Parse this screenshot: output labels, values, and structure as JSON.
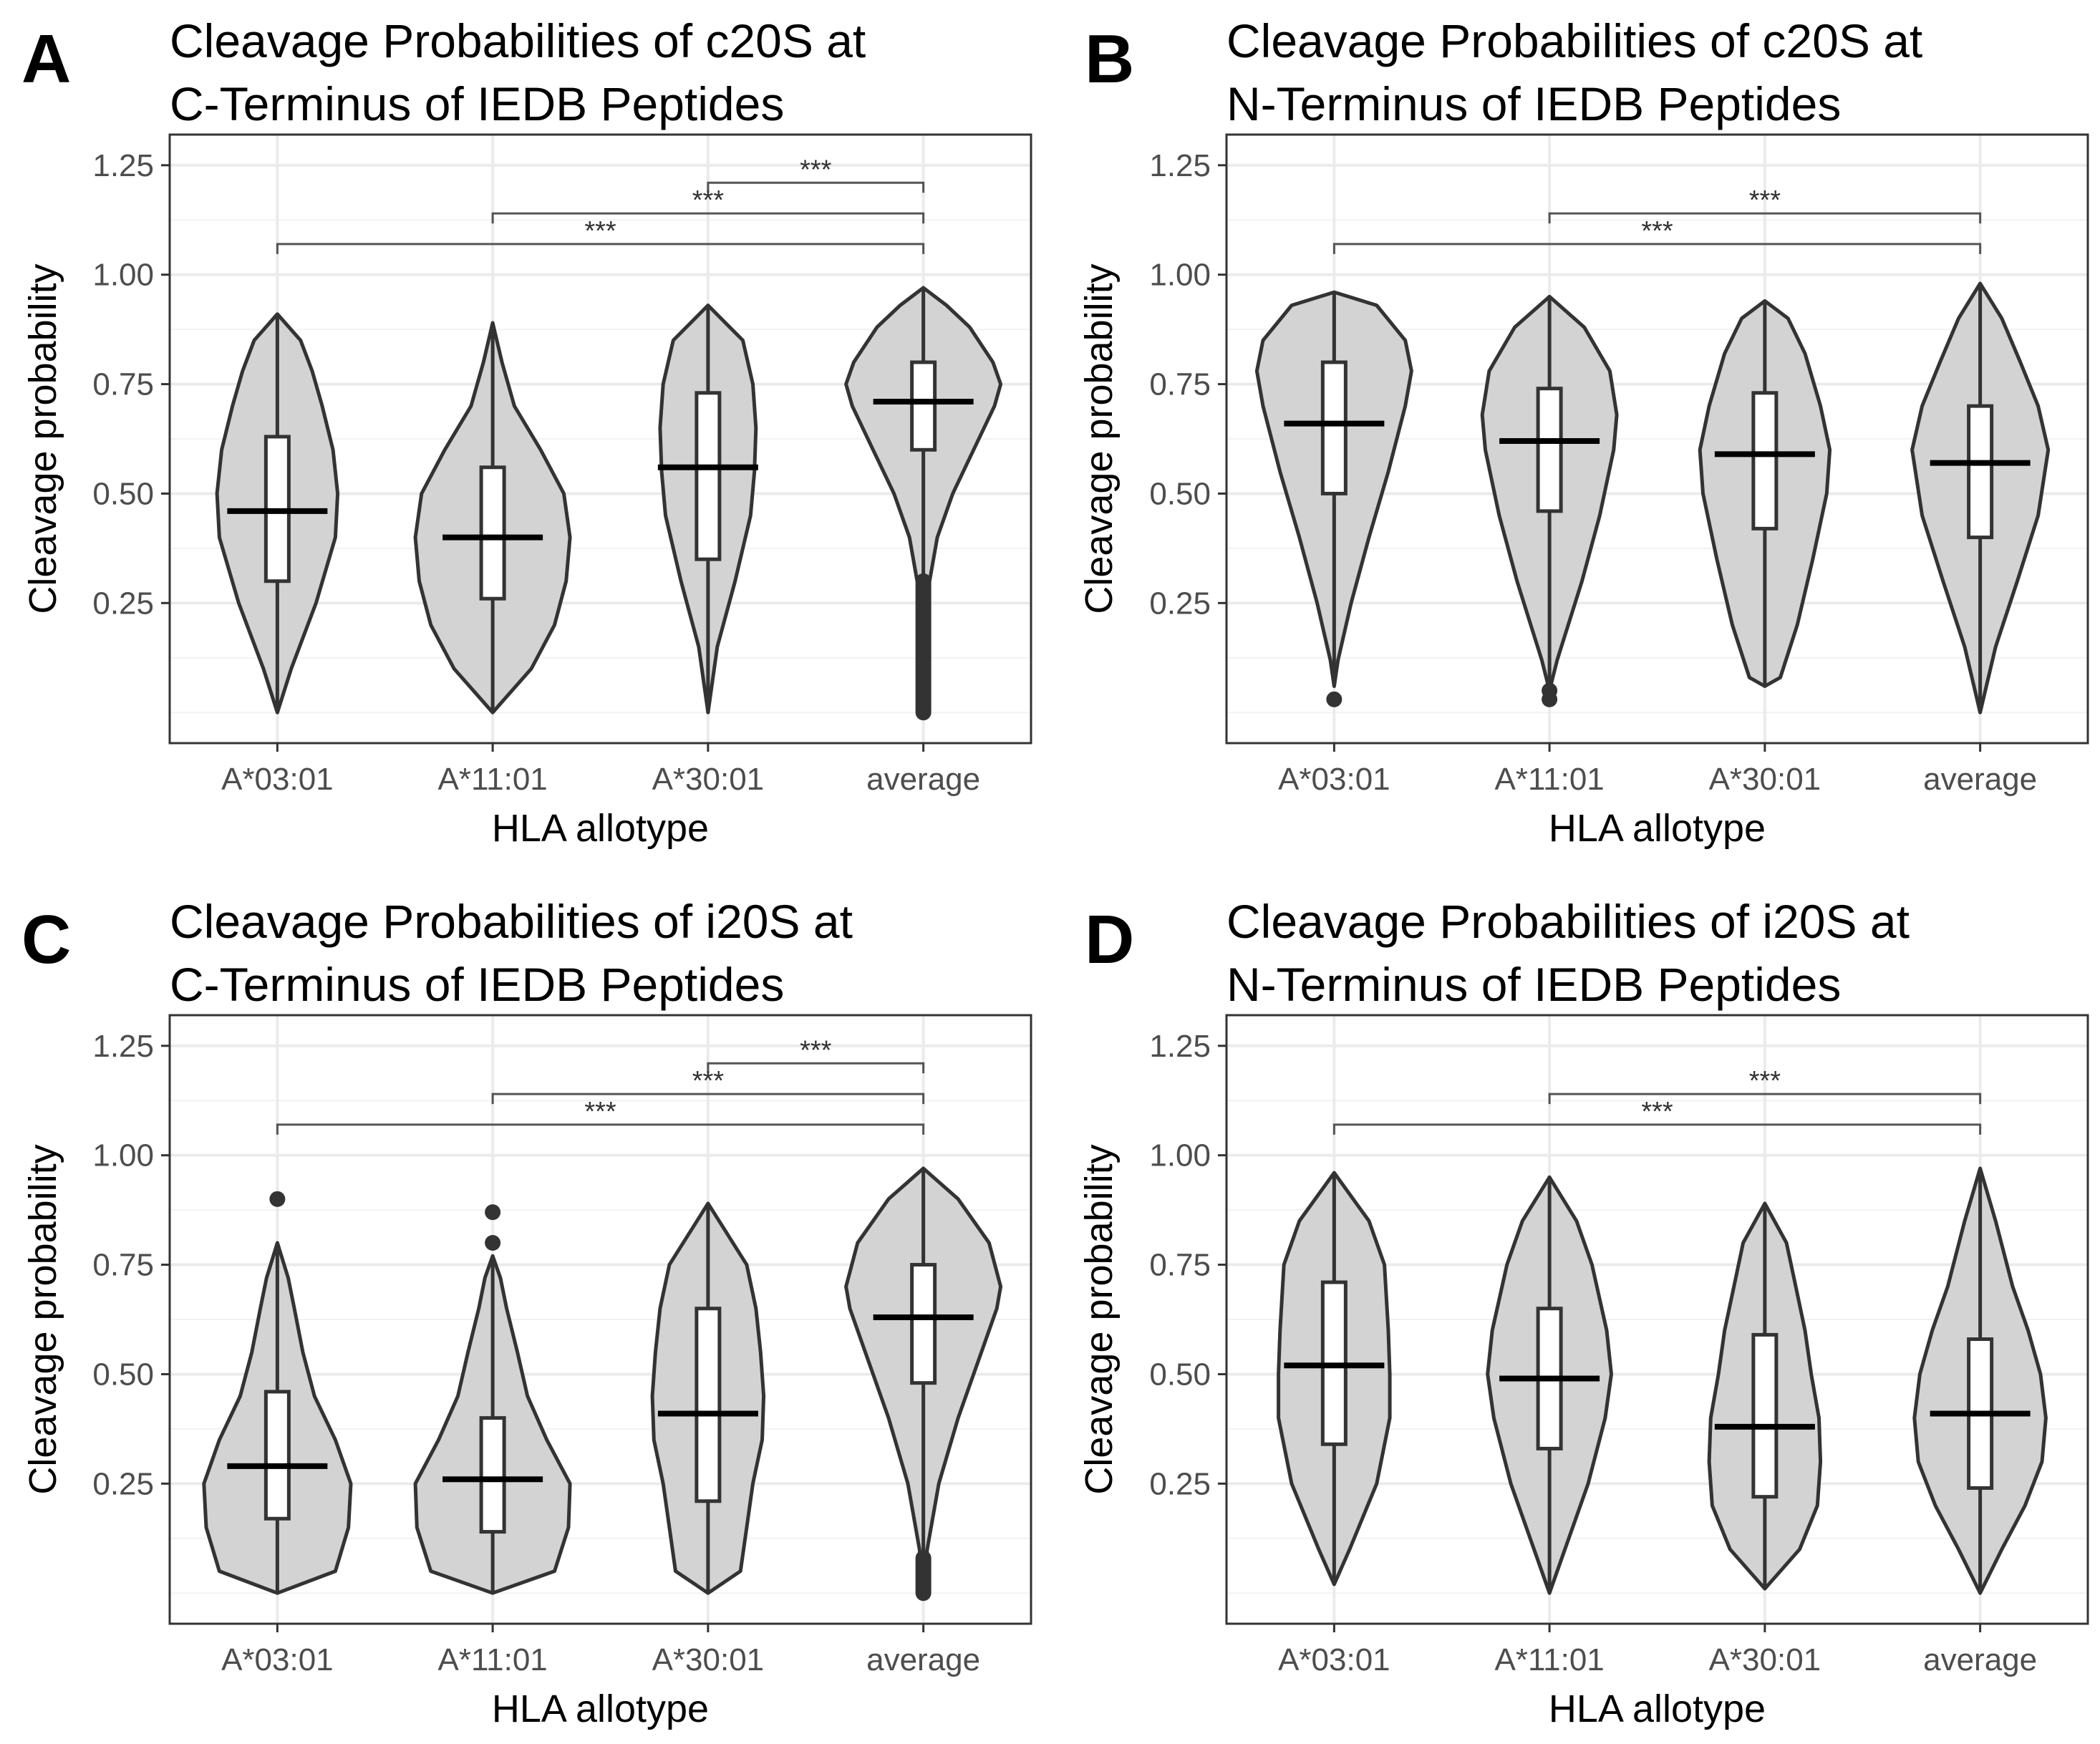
{
  "figure": {
    "panels": [
      {
        "letter": "A",
        "title_lines": [
          "Cleavage Probabilities of c20S at",
          "C-Terminus of IEDB Peptides"
        ],
        "xlabel": "HLA allotype",
        "ylabel": "Cleavage probability"
      },
      {
        "letter": "B",
        "title_lines": [
          "Cleavage Probabilities of c20S at",
          "N-Terminus of IEDB Peptides"
        ],
        "xlabel": "HLA allotype",
        "ylabel": "Cleavage probability"
      },
      {
        "letter": "C",
        "title_lines": [
          "Cleavage Probabilities of i20S at",
          "C-Terminus of IEDB Peptides"
        ],
        "xlabel": "HLA allotype",
        "ylabel": "Cleavage probability"
      },
      {
        "letter": "D",
        "title_lines": [
          "Cleavage Probabilities of i20S at",
          "N-Terminus of IEDB Peptides"
        ],
        "xlabel": "HLA allotype",
        "ylabel": "Cleavage probability"
      }
    ]
  },
  "colors": {
    "violin_fill": "#d3d3d3",
    "outline": "#333333",
    "box_fill": "#ffffff",
    "grid_major": "#ebebeb",
    "grid_minor": "#f2f2f2",
    "panel_border": "#333333",
    "median": "#000000"
  },
  "chart_data": [
    {
      "type": "violin",
      "panel": "A",
      "title": "Cleavage Probabilities of c20S at C-Terminus of IEDB Peptides",
      "xlabel": "HLA allotype",
      "ylabel": "Cleavage probability",
      "categories": [
        "A*03:01",
        "A*11:01",
        "A*30:01",
        "average"
      ],
      "yticks": [
        0.25,
        0.5,
        0.75,
        1.0,
        1.25
      ],
      "ytick_labels": [
        "0.25",
        "0.50",
        "0.75",
        "1.00",
        "1.25"
      ],
      "ylim": [
        -0.07,
        1.32
      ],
      "violins": [
        {
          "min": 0.0,
          "max": 0.91,
          "profile": [
            [
              0.0,
              0.0
            ],
            [
              0.1,
              0.18
            ],
            [
              0.25,
              0.5
            ],
            [
              0.4,
              0.75
            ],
            [
              0.5,
              0.78
            ],
            [
              0.6,
              0.72
            ],
            [
              0.7,
              0.58
            ],
            [
              0.78,
              0.45
            ],
            [
              0.85,
              0.3
            ],
            [
              0.91,
              0.0
            ]
          ]
        },
        {
          "min": 0.0,
          "max": 0.89,
          "profile": [
            [
              0.0,
              0.0
            ],
            [
              0.1,
              0.5
            ],
            [
              0.2,
              0.8
            ],
            [
              0.3,
              0.95
            ],
            [
              0.4,
              1.0
            ],
            [
              0.5,
              0.92
            ],
            [
              0.6,
              0.62
            ],
            [
              0.7,
              0.28
            ],
            [
              0.8,
              0.12
            ],
            [
              0.89,
              0.0
            ]
          ]
        },
        {
          "min": 0.0,
          "max": 0.93,
          "profile": [
            [
              0.0,
              0.0
            ],
            [
              0.15,
              0.12
            ],
            [
              0.3,
              0.35
            ],
            [
              0.45,
              0.55
            ],
            [
              0.55,
              0.6
            ],
            [
              0.65,
              0.62
            ],
            [
              0.75,
              0.58
            ],
            [
              0.85,
              0.45
            ],
            [
              0.93,
              0.0
            ]
          ]
        },
        {
          "min": 0.3,
          "max": 0.97,
          "profile": [
            [
              0.3,
              0.08
            ],
            [
              0.4,
              0.18
            ],
            [
              0.5,
              0.38
            ],
            [
              0.6,
              0.65
            ],
            [
              0.7,
              0.92
            ],
            [
              0.75,
              1.0
            ],
            [
              0.8,
              0.9
            ],
            [
              0.88,
              0.6
            ],
            [
              0.93,
              0.3
            ],
            [
              0.97,
              0.0
            ]
          ]
        }
      ],
      "boxes": [
        {
          "q1": 0.3,
          "median": 0.46,
          "q3": 0.63
        },
        {
          "q1": 0.26,
          "median": 0.4,
          "q3": 0.56
        },
        {
          "q1": 0.35,
          "median": 0.56,
          "q3": 0.73
        },
        {
          "q1": 0.6,
          "median": 0.71,
          "q3": 0.8
        }
      ],
      "whiskers": [
        [
          0.0,
          0.91
        ],
        [
          0.0,
          0.89
        ],
        [
          0.0,
          0.93
        ],
        [
          0.3,
          0.97
        ]
      ],
      "outliers": [
        [],
        [],
        [],
        {
          "from": 0.0,
          "to": 0.3
        }
      ],
      "significance": [
        {
          "from": "A*30:01",
          "to": "average",
          "y": 1.21,
          "label": "***"
        },
        {
          "from": "A*11:01",
          "to": "average",
          "y": 1.14,
          "label": "***"
        },
        {
          "from": "A*03:01",
          "to": "average",
          "y": 1.07,
          "label": "***"
        }
      ]
    },
    {
      "type": "violin",
      "panel": "B",
      "title": "Cleavage Probabilities of c20S at N-Terminus of IEDB Peptides",
      "xlabel": "HLA allotype",
      "ylabel": "Cleavage probability",
      "categories": [
        "A*03:01",
        "A*11:01",
        "A*30:01",
        "average"
      ],
      "yticks": [
        0.25,
        0.5,
        0.75,
        1.0,
        1.25
      ],
      "ytick_labels": [
        "0.25",
        "0.50",
        "0.75",
        "1.00",
        "1.25"
      ],
      "ylim": [
        -0.07,
        1.32
      ],
      "violins": [
        {
          "min": 0.06,
          "max": 0.96,
          "profile": [
            [
              0.06,
              0.0
            ],
            [
              0.12,
              0.05
            ],
            [
              0.25,
              0.22
            ],
            [
              0.4,
              0.45
            ],
            [
              0.55,
              0.7
            ],
            [
              0.7,
              0.92
            ],
            [
              0.78,
              1.0
            ],
            [
              0.85,
              0.92
            ],
            [
              0.93,
              0.55
            ],
            [
              0.96,
              0.0
            ]
          ]
        },
        {
          "min": 0.05,
          "max": 0.95,
          "profile": [
            [
              0.05,
              0.0
            ],
            [
              0.12,
              0.1
            ],
            [
              0.3,
              0.42
            ],
            [
              0.45,
              0.65
            ],
            [
              0.6,
              0.83
            ],
            [
              0.68,
              0.87
            ],
            [
              0.78,
              0.78
            ],
            [
              0.88,
              0.45
            ],
            [
              0.95,
              0.0
            ]
          ]
        },
        {
          "min": 0.06,
          "max": 0.94,
          "profile": [
            [
              0.06,
              0.0
            ],
            [
              0.08,
              0.2
            ],
            [
              0.2,
              0.42
            ],
            [
              0.35,
              0.62
            ],
            [
              0.5,
              0.8
            ],
            [
              0.6,
              0.84
            ],
            [
              0.7,
              0.72
            ],
            [
              0.82,
              0.52
            ],
            [
              0.9,
              0.3
            ],
            [
              0.94,
              0.0
            ]
          ]
        },
        {
          "min": 0.0,
          "max": 0.98,
          "profile": [
            [
              0.0,
              0.0
            ],
            [
              0.15,
              0.2
            ],
            [
              0.3,
              0.48
            ],
            [
              0.45,
              0.75
            ],
            [
              0.6,
              0.88
            ],
            [
              0.7,
              0.75
            ],
            [
              0.8,
              0.52
            ],
            [
              0.9,
              0.28
            ],
            [
              0.98,
              0.0
            ]
          ]
        }
      ],
      "boxes": [
        {
          "q1": 0.5,
          "median": 0.66,
          "q3": 0.8
        },
        {
          "q1": 0.46,
          "median": 0.62,
          "q3": 0.74
        },
        {
          "q1": 0.42,
          "median": 0.59,
          "q3": 0.73
        },
        {
          "q1": 0.4,
          "median": 0.57,
          "q3": 0.7
        }
      ],
      "whiskers": [
        [
          0.06,
          0.96
        ],
        [
          0.05,
          0.95
        ],
        [
          0.06,
          0.94
        ],
        [
          0.0,
          0.98
        ]
      ],
      "outliers": [
        [
          0.03
        ],
        [
          0.03,
          0.05
        ],
        [],
        []
      ],
      "significance": [
        {
          "from": "A*11:01",
          "to": "average",
          "y": 1.14,
          "label": "***"
        },
        {
          "from": "A*03:01",
          "to": "average",
          "y": 1.07,
          "label": "***"
        }
      ]
    },
    {
      "type": "violin",
      "panel": "C",
      "title": "Cleavage Probabilities of i20S at C-Terminus of IEDB Peptides",
      "xlabel": "HLA allotype",
      "ylabel": "Cleavage probability",
      "categories": [
        "A*03:01",
        "A*11:01",
        "A*30:01",
        "average"
      ],
      "yticks": [
        0.25,
        0.5,
        0.75,
        1.0,
        1.25
      ],
      "ytick_labels": [
        "0.25",
        "0.50",
        "0.75",
        "1.00",
        "1.25"
      ],
      "ylim": [
        -0.07,
        1.32
      ],
      "violins": [
        {
          "min": 0.0,
          "max": 0.8,
          "profile": [
            [
              0.0,
              0.0
            ],
            [
              0.05,
              0.75
            ],
            [
              0.15,
              0.92
            ],
            [
              0.25,
              0.95
            ],
            [
              0.35,
              0.75
            ],
            [
              0.45,
              0.48
            ],
            [
              0.55,
              0.33
            ],
            [
              0.65,
              0.22
            ],
            [
              0.72,
              0.14
            ],
            [
              0.8,
              0.0
            ]
          ]
        },
        {
          "min": 0.0,
          "max": 0.77,
          "profile": [
            [
              0.0,
              0.0
            ],
            [
              0.05,
              0.8
            ],
            [
              0.15,
              0.98
            ],
            [
              0.25,
              1.0
            ],
            [
              0.35,
              0.7
            ],
            [
              0.45,
              0.45
            ],
            [
              0.55,
              0.32
            ],
            [
              0.65,
              0.18
            ],
            [
              0.72,
              0.1
            ],
            [
              0.77,
              0.0
            ]
          ]
        },
        {
          "min": 0.0,
          "max": 0.89,
          "profile": [
            [
              0.0,
              0.0
            ],
            [
              0.05,
              0.42
            ],
            [
              0.15,
              0.5
            ],
            [
              0.25,
              0.58
            ],
            [
              0.35,
              0.7
            ],
            [
              0.45,
              0.72
            ],
            [
              0.55,
              0.68
            ],
            [
              0.65,
              0.62
            ],
            [
              0.75,
              0.5
            ],
            [
              0.89,
              0.0
            ]
          ]
        },
        {
          "min": 0.0,
          "max": 0.97,
          "profile": [
            [
              0.0,
              0.0
            ],
            [
              0.1,
              0.05
            ],
            [
              0.25,
              0.2
            ],
            [
              0.4,
              0.45
            ],
            [
              0.55,
              0.75
            ],
            [
              0.65,
              0.95
            ],
            [
              0.7,
              1.0
            ],
            [
              0.8,
              0.85
            ],
            [
              0.9,
              0.45
            ],
            [
              0.97,
              0.0
            ]
          ]
        }
      ],
      "boxes": [
        {
          "q1": 0.17,
          "median": 0.29,
          "q3": 0.46
        },
        {
          "q1": 0.14,
          "median": 0.26,
          "q3": 0.4
        },
        {
          "q1": 0.21,
          "median": 0.41,
          "q3": 0.65
        },
        {
          "q1": 0.48,
          "median": 0.63,
          "q3": 0.75
        }
      ],
      "whiskers": [
        [
          0.0,
          0.8
        ],
        [
          0.0,
          0.77
        ],
        [
          0.0,
          0.89
        ],
        [
          0.0,
          0.97
        ]
      ],
      "outliers": [
        [
          0.9
        ],
        [
          0.8,
          0.87
        ],
        [],
        {
          "from": 0.0,
          "to": 0.08
        }
      ],
      "significance": [
        {
          "from": "A*30:01",
          "to": "average",
          "y": 1.21,
          "label": "***"
        },
        {
          "from": "A*11:01",
          "to": "average",
          "y": 1.14,
          "label": "***"
        },
        {
          "from": "A*03:01",
          "to": "average",
          "y": 1.07,
          "label": "***"
        }
      ]
    },
    {
      "type": "violin",
      "panel": "D",
      "title": "Cleavage Probabilities of i20S at N-Terminus of IEDB Peptides",
      "xlabel": "HLA allotype",
      "ylabel": "Cleavage probability",
      "categories": [
        "A*03:01",
        "A*11:01",
        "A*30:01",
        "average"
      ],
      "yticks": [
        0.25,
        0.5,
        0.75,
        1.0,
        1.25
      ],
      "ytick_labels": [
        "0.25",
        "0.50",
        "0.75",
        "1.00",
        "1.25"
      ],
      "ylim": [
        -0.07,
        1.32
      ],
      "violins": [
        {
          "min": 0.02,
          "max": 0.96,
          "profile": [
            [
              0.02,
              0.0
            ],
            [
              0.1,
              0.2
            ],
            [
              0.25,
              0.55
            ],
            [
              0.4,
              0.72
            ],
            [
              0.5,
              0.72
            ],
            [
              0.6,
              0.7
            ],
            [
              0.75,
              0.65
            ],
            [
              0.85,
              0.45
            ],
            [
              0.96,
              0.0
            ]
          ]
        },
        {
          "min": 0.0,
          "max": 0.95,
          "profile": [
            [
              0.0,
              0.0
            ],
            [
              0.1,
              0.2
            ],
            [
              0.25,
              0.5
            ],
            [
              0.4,
              0.72
            ],
            [
              0.5,
              0.8
            ],
            [
              0.6,
              0.74
            ],
            [
              0.75,
              0.55
            ],
            [
              0.85,
              0.35
            ],
            [
              0.95,
              0.0
            ]
          ]
        },
        {
          "min": 0.01,
          "max": 0.89,
          "profile": [
            [
              0.01,
              0.0
            ],
            [
              0.1,
              0.45
            ],
            [
              0.2,
              0.68
            ],
            [
              0.3,
              0.72
            ],
            [
              0.4,
              0.7
            ],
            [
              0.5,
              0.6
            ],
            [
              0.6,
              0.52
            ],
            [
              0.7,
              0.4
            ],
            [
              0.8,
              0.28
            ],
            [
              0.89,
              0.0
            ]
          ]
        },
        {
          "min": 0.0,
          "max": 0.97,
          "profile": [
            [
              0.0,
              0.0
            ],
            [
              0.1,
              0.28
            ],
            [
              0.2,
              0.58
            ],
            [
              0.3,
              0.8
            ],
            [
              0.4,
              0.85
            ],
            [
              0.5,
              0.78
            ],
            [
              0.6,
              0.62
            ],
            [
              0.7,
              0.42
            ],
            [
              0.85,
              0.2
            ],
            [
              0.97,
              0.0
            ]
          ]
        }
      ],
      "boxes": [
        {
          "q1": 0.34,
          "median": 0.52,
          "q3": 0.71
        },
        {
          "q1": 0.33,
          "median": 0.49,
          "q3": 0.65
        },
        {
          "q1": 0.22,
          "median": 0.38,
          "q3": 0.59
        },
        {
          "q1": 0.24,
          "median": 0.41,
          "q3": 0.58
        }
      ],
      "whiskers": [
        [
          0.02,
          0.96
        ],
        [
          0.0,
          0.95
        ],
        [
          0.01,
          0.89
        ],
        [
          0.0,
          0.97
        ]
      ],
      "outliers": [
        [],
        [],
        [],
        []
      ],
      "significance": [
        {
          "from": "A*11:01",
          "to": "average",
          "y": 1.14,
          "label": "***"
        },
        {
          "from": "A*03:01",
          "to": "average",
          "y": 1.07,
          "label": "***"
        }
      ]
    }
  ]
}
